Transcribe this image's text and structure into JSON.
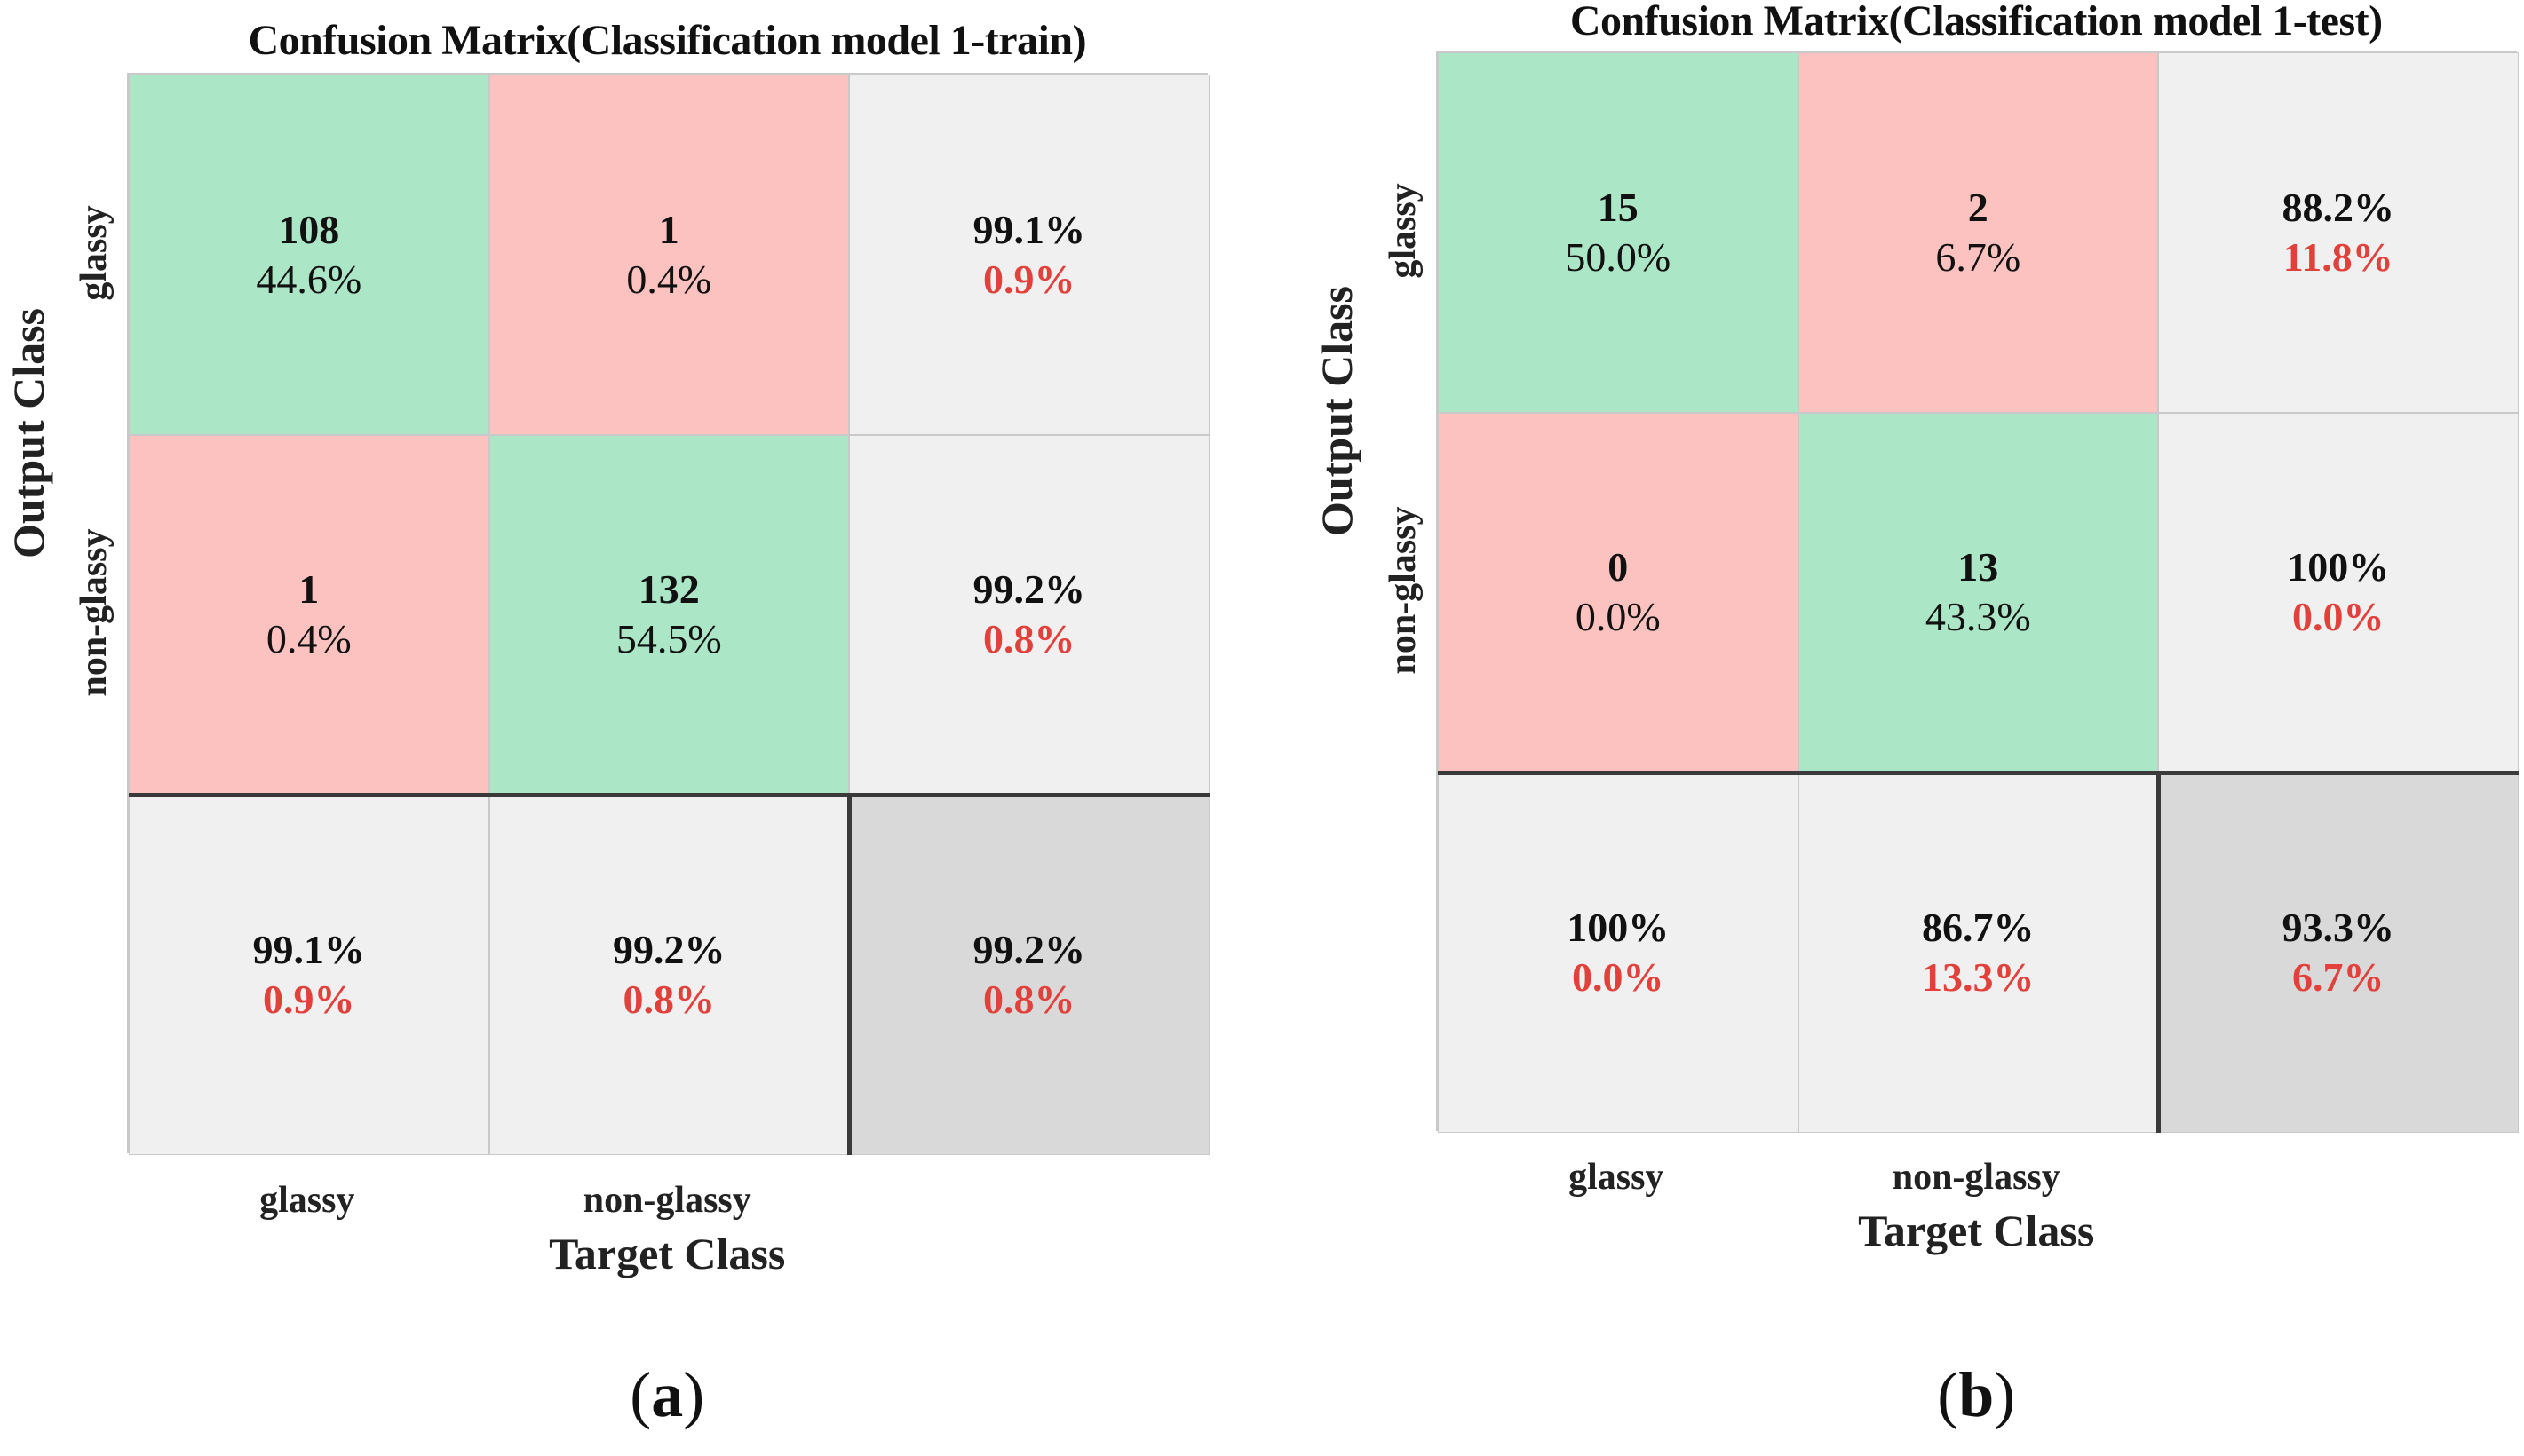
{
  "chart_data": [
    {
      "type": "heatmap",
      "title": "Confusion Matrix(Classification model 1-train)",
      "xlabel": "Target Class",
      "ylabel": "Output Class",
      "x_tick_labels": [
        "glassy",
        "non-glassy"
      ],
      "y_tick_labels": [
        "glassy",
        "non-glassy"
      ],
      "matrix": [
        [
          {
            "count": "108",
            "percent": "44.6%",
            "kind": "correct"
          },
          {
            "count": "1",
            "percent": "0.4%",
            "kind": "wrong"
          },
          {
            "top": "99.1%",
            "bottom": "0.9%",
            "kind": "summary"
          }
        ],
        [
          {
            "count": "1",
            "percent": "0.4%",
            "kind": "wrong"
          },
          {
            "count": "132",
            "percent": "54.5%",
            "kind": "correct"
          },
          {
            "top": "99.2%",
            "bottom": "0.8%",
            "kind": "summary"
          }
        ],
        [
          {
            "top": "99.1%",
            "bottom": "0.9%",
            "kind": "summary"
          },
          {
            "top": "99.2%",
            "bottom": "0.8%",
            "kind": "summary"
          },
          {
            "top": "99.2%",
            "bottom": "0.8%",
            "kind": "overall"
          }
        ]
      ],
      "sublabel": {
        "open": "(",
        "letter": "a",
        "close": ")"
      }
    },
    {
      "type": "heatmap",
      "title": "Confusion Matrix(Classification model 1-test)",
      "xlabel": "Target Class",
      "ylabel": "Output Class",
      "x_tick_labels": [
        "glassy",
        "non-glassy"
      ],
      "y_tick_labels": [
        "glassy",
        "non-glassy"
      ],
      "matrix": [
        [
          {
            "count": "15",
            "percent": "50.0%",
            "kind": "correct"
          },
          {
            "count": "2",
            "percent": "6.7%",
            "kind": "wrong"
          },
          {
            "top": "88.2%",
            "bottom": "11.8%",
            "kind": "summary"
          }
        ],
        [
          {
            "count": "0",
            "percent": "0.0%",
            "kind": "wrong"
          },
          {
            "count": "13",
            "percent": "43.3%",
            "kind": "correct"
          },
          {
            "top": "100%",
            "bottom": "0.0%",
            "kind": "summary"
          }
        ],
        [
          {
            "top": "100%",
            "bottom": "0.0%",
            "kind": "summary"
          },
          {
            "top": "86.7%",
            "bottom": "13.3%",
            "kind": "summary"
          },
          {
            "top": "93.3%",
            "bottom": "6.7%",
            "kind": "overall"
          }
        ]
      ],
      "sublabel": {
        "open": "(",
        "letter": "b",
        "close": ")"
      }
    }
  ],
  "colors": {
    "correct": "#abe6c6",
    "wrong": "#fcc2bf",
    "summary": "#f0f0f0",
    "overall": "#d9d9d9",
    "red_text": "#e2413b",
    "grid_line": "#c9c9c9",
    "border": "#3a3a3a"
  }
}
